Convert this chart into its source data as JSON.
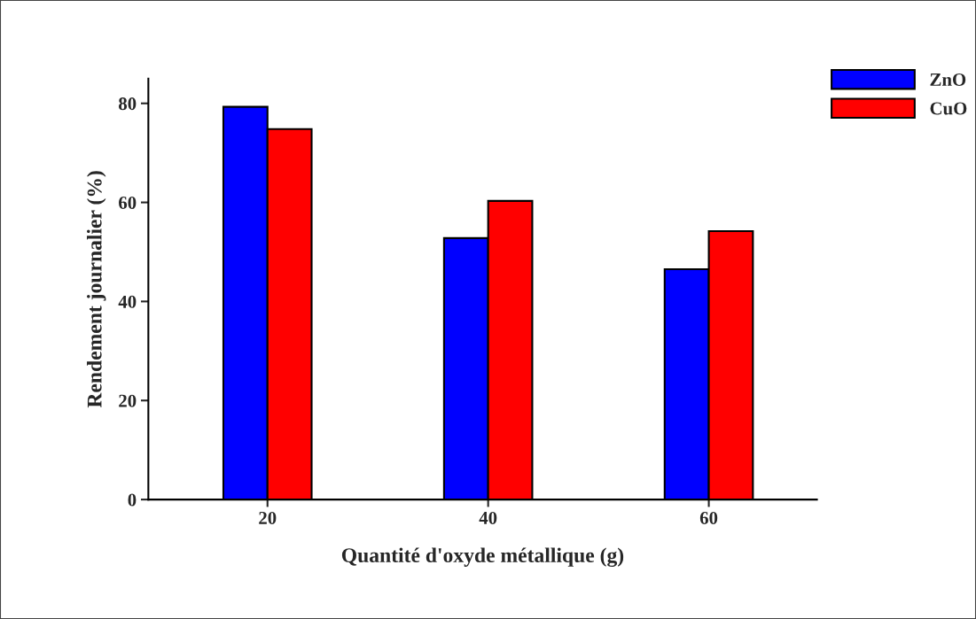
{
  "chart_data": {
    "type": "bar",
    "xlabel": "Quantité d'oxyde métallique (g)",
    "ylabel": "Rendement journalier (%)",
    "categories": [
      "20",
      "40",
      "60"
    ],
    "series": [
      {
        "name": "ZnO",
        "color": "#0000ff",
        "values": [
          79.3,
          52.8,
          46.5
        ]
      },
      {
        "name": "CuO",
        "color": "#ff0000",
        "values": [
          74.8,
          60.3,
          54.2
        ]
      }
    ],
    "ylim": [
      0,
      85
    ],
    "yticks": [
      0,
      20,
      40,
      60,
      80
    ],
    "grid": false,
    "legend": "top right"
  }
}
